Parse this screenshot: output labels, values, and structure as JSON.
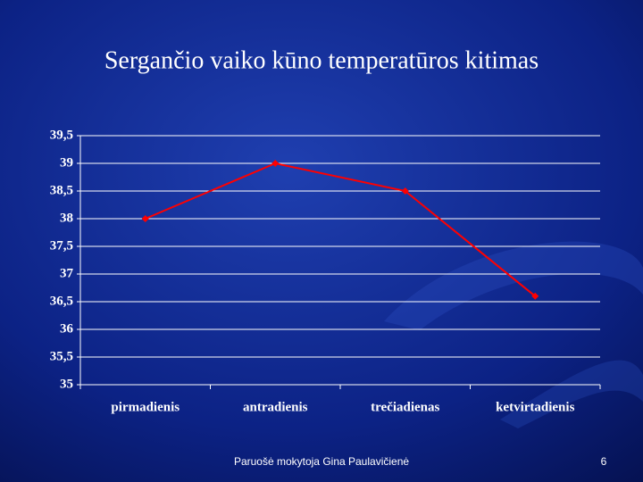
{
  "chart_data": {
    "type": "line",
    "title": "Sergančio vaiko kūno temperatūros kitimas",
    "categories": [
      "pirmadienis",
      "antradienis",
      "trečiadienas",
      "ketvirtadienis"
    ],
    "values": [
      38,
      39,
      38.5,
      36.6
    ],
    "color": "#ff0000",
    "ylim": [
      35,
      39.5
    ],
    "yticks": [
      35,
      {
        "value": 35.5,
        "label": "35,5"
      },
      36,
      {
        "value": 36.5,
        "label": "36,5"
      },
      37,
      {
        "value": 37.5,
        "label": "37,5"
      },
      38,
      {
        "value": 38.5,
        "label": "38,5"
      },
      39,
      {
        "value": 39.5,
        "label": "39,5"
      }
    ],
    "grid": true
  },
  "footer": "Paruošė mokytoja Gina Paulavičienė",
  "page_number": 6
}
